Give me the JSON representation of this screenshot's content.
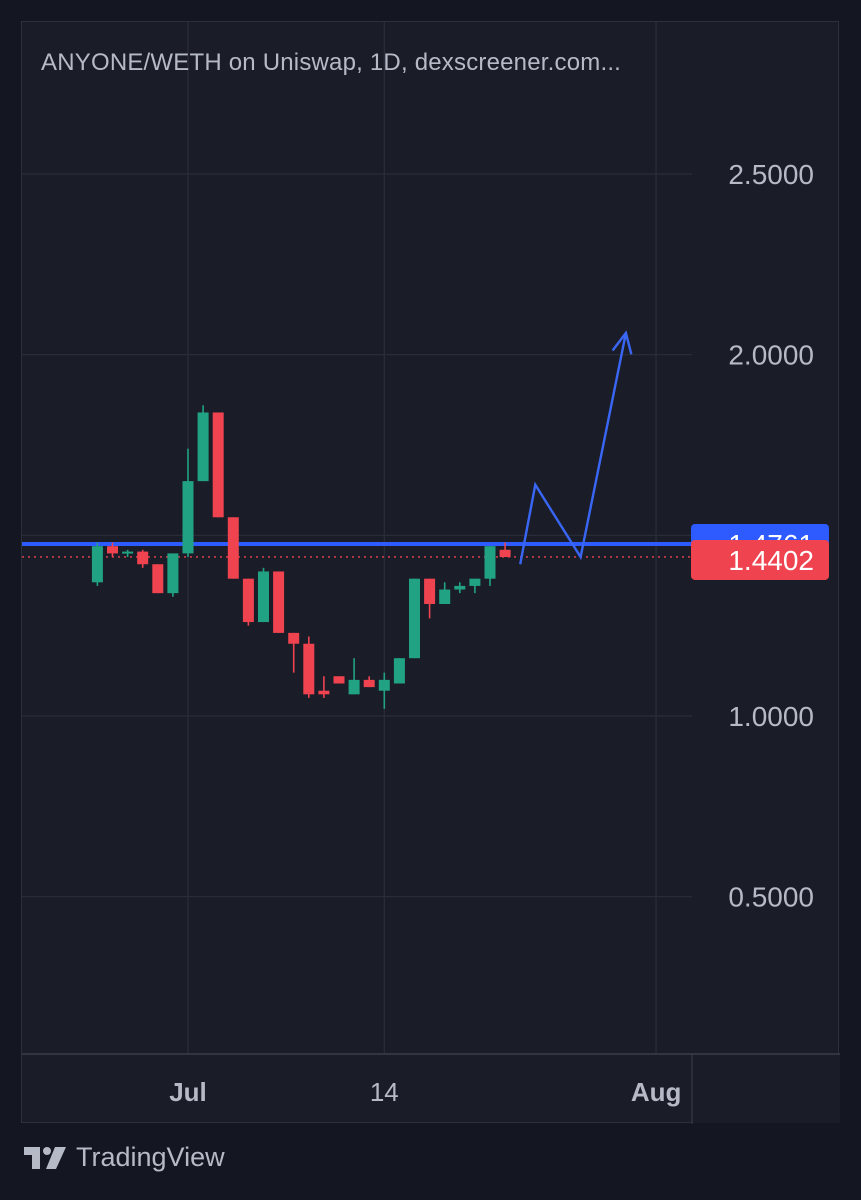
{
  "header": {
    "title": "ANYONE/WETH on Uniswap, 1D, dexscreener.com..."
  },
  "branding": {
    "name": "TradingView"
  },
  "colors": {
    "background": "#1a1d28",
    "up": "#21a383",
    "down": "#ef4350",
    "current_price_line": "#2e5bff",
    "drawing": "#3a66f5",
    "grid": "#2a2e3a",
    "axis_text": "#b6bac6"
  },
  "chart_data": {
    "type": "candlestick",
    "title": "ANYONE/WETH on Uniswap, 1D, dexscreener.com...",
    "xlabel": "",
    "ylabel": "",
    "ylim": [
      0.06,
      2.85
    ],
    "yticks": [
      "2.5000",
      "2.0000",
      "1.0000",
      "0.5000"
    ],
    "xticks": [
      "Jul",
      "14",
      "Aug"
    ],
    "grid": true,
    "candles": [
      {
        "date": "2024-06-25",
        "open": 1.37,
        "high": 1.48,
        "low": 1.36,
        "close": 1.47
      },
      {
        "date": "2024-06-26",
        "open": 1.47,
        "high": 1.48,
        "low": 1.44,
        "close": 1.45
      },
      {
        "date": "2024-06-27",
        "open": 1.45,
        "high": 1.46,
        "low": 1.44,
        "close": 1.455
      },
      {
        "date": "2024-06-28",
        "open": 1.455,
        "high": 1.46,
        "low": 1.41,
        "close": 1.42
      },
      {
        "date": "2024-06-29",
        "open": 1.42,
        "high": 1.42,
        "low": 1.34,
        "close": 1.34
      },
      {
        "date": "2024-06-30",
        "open": 1.34,
        "high": 1.45,
        "low": 1.33,
        "close": 1.45
      },
      {
        "date": "2024-07-01",
        "open": 1.45,
        "high": 1.74,
        "low": 1.44,
        "close": 1.65
      },
      {
        "date": "2024-07-02",
        "open": 1.65,
        "high": 1.86,
        "low": 1.65,
        "close": 1.84
      },
      {
        "date": "2024-07-03",
        "open": 1.84,
        "high": 1.84,
        "low": 1.55,
        "close": 1.55
      },
      {
        "date": "2024-07-04",
        "open": 1.55,
        "high": 1.55,
        "low": 1.38,
        "close": 1.38
      },
      {
        "date": "2024-07-05",
        "open": 1.38,
        "high": 1.38,
        "low": 1.25,
        "close": 1.26
      },
      {
        "date": "2024-07-06",
        "open": 1.26,
        "high": 1.41,
        "low": 1.26,
        "close": 1.4
      },
      {
        "date": "2024-07-07",
        "open": 1.4,
        "high": 1.4,
        "low": 1.23,
        "close": 1.23
      },
      {
        "date": "2024-07-08",
        "open": 1.23,
        "high": 1.23,
        "low": 1.12,
        "close": 1.2
      },
      {
        "date": "2024-07-09",
        "open": 1.2,
        "high": 1.22,
        "low": 1.05,
        "close": 1.06
      },
      {
        "date": "2024-07-10",
        "open": 1.07,
        "high": 1.11,
        "low": 1.05,
        "close": 1.06
      },
      {
        "date": "2024-07-11",
        "open": 1.11,
        "high": 1.11,
        "low": 1.09,
        "close": 1.09
      },
      {
        "date": "2024-07-12",
        "open": 1.06,
        "high": 1.16,
        "low": 1.06,
        "close": 1.1
      },
      {
        "date": "2024-07-13",
        "open": 1.1,
        "high": 1.11,
        "low": 1.08,
        "close": 1.08
      },
      {
        "date": "2024-07-14",
        "open": 1.07,
        "high": 1.12,
        "low": 1.02,
        "close": 1.1
      },
      {
        "date": "2024-07-15",
        "open": 1.09,
        "high": 1.16,
        "low": 1.09,
        "close": 1.16
      },
      {
        "date": "2024-07-16",
        "open": 1.16,
        "high": 1.38,
        "low": 1.16,
        "close": 1.38
      },
      {
        "date": "2024-07-17",
        "open": 1.38,
        "high": 1.38,
        "low": 1.27,
        "close": 1.31
      },
      {
        "date": "2024-07-18",
        "open": 1.31,
        "high": 1.37,
        "low": 1.31,
        "close": 1.35
      },
      {
        "date": "2024-07-19",
        "open": 1.35,
        "high": 1.37,
        "low": 1.34,
        "close": 1.36
      },
      {
        "date": "2024-07-20",
        "open": 1.36,
        "high": 1.38,
        "low": 1.34,
        "close": 1.38
      },
      {
        "date": "2024-07-21",
        "open": 1.38,
        "high": 1.47,
        "low": 1.36,
        "close": 1.47
      },
      {
        "date": "2024-07-22",
        "open": 1.46,
        "high": 1.48,
        "low": 1.44,
        "close": 1.44
      }
    ],
    "horizontal_line": {
      "price": 1.4761,
      "label": "1.4761"
    },
    "last_price": {
      "price": 1.4402,
      "label": "1.4402"
    },
    "drawing_path": [
      {
        "date": "2024-07-23",
        "price": 1.42
      },
      {
        "date": "2024-07-24",
        "price": 1.64
      },
      {
        "date": "2024-07-27",
        "price": 1.44
      },
      {
        "date": "2024-07-30",
        "price": 2.06
      }
    ]
  }
}
